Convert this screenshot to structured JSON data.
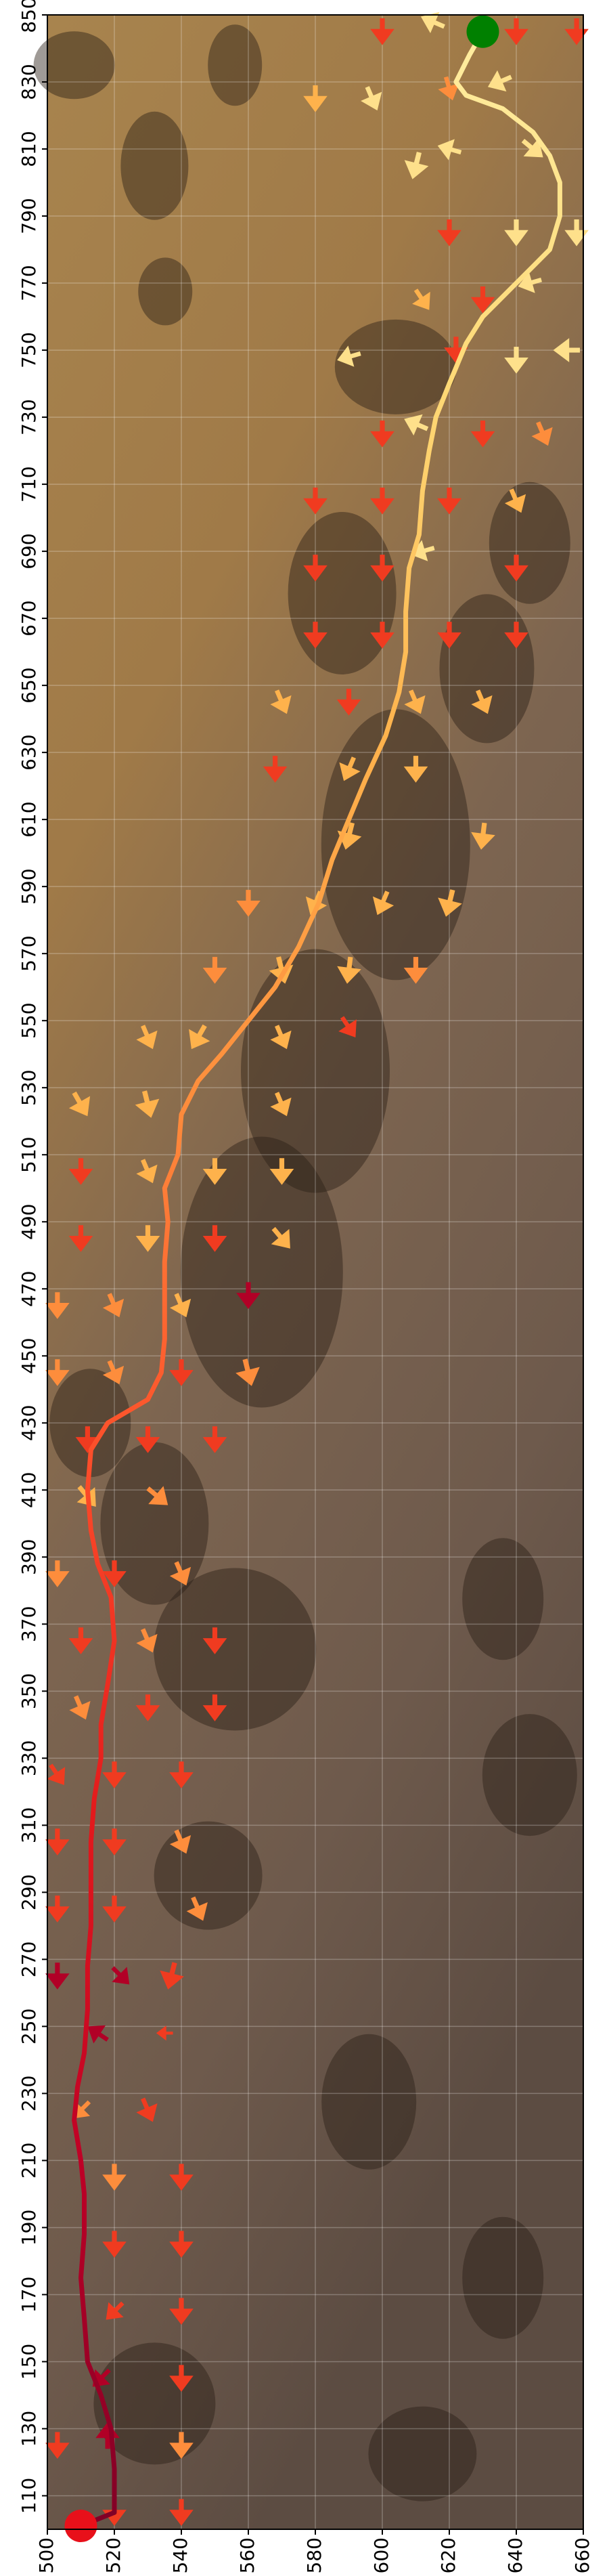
{
  "chart_data": {
    "type": "quiver",
    "xlim": [
      500,
      660
    ],
    "ylim": [
      100,
      850
    ],
    "xticks": [
      500,
      520,
      540,
      560,
      580,
      600,
      620,
      640,
      660
    ],
    "yticks": [
      110,
      130,
      150,
      170,
      190,
      210,
      230,
      250,
      270,
      290,
      310,
      330,
      350,
      370,
      390,
      410,
      430,
      450,
      470,
      490,
      510,
      530,
      550,
      570,
      590,
      610,
      630,
      650,
      670,
      690,
      710,
      730,
      750,
      770,
      790,
      810,
      830,
      850
    ],
    "grid": true,
    "path": {
      "x": [
        630,
        626,
        622,
        625,
        636,
        645,
        650,
        653,
        653,
        650,
        645,
        638,
        630,
        625,
        620,
        616,
        614,
        612,
        611,
        608,
        607,
        607,
        605,
        601,
        595,
        590,
        585,
        581,
        575,
        568,
        560,
        552,
        545,
        540,
        539,
        535,
        536,
        535,
        535,
        535,
        534,
        530,
        518,
        513,
        512,
        513,
        515,
        519,
        520,
        518,
        516,
        516,
        514,
        513,
        513,
        513,
        512,
        512,
        511,
        509,
        508,
        510,
        511,
        511,
        510,
        511,
        512,
        516,
        519,
        520,
        520,
        510
      ],
      "y": [
        845,
        838,
        830,
        826,
        822,
        815,
        808,
        800,
        790,
        780,
        775,
        768,
        760,
        752,
        740,
        730,
        720,
        708,
        695,
        685,
        672,
        660,
        648,
        635,
        622,
        610,
        598,
        585,
        572,
        560,
        550,
        540,
        532,
        522,
        510,
        500,
        490,
        478,
        465,
        455,
        445,
        437,
        430,
        422,
        410,
        398,
        388,
        378,
        365,
        352,
        340,
        330,
        318,
        305,
        292,
        280,
        268,
        255,
        242,
        232,
        222,
        210,
        200,
        188,
        175,
        163,
        150,
        140,
        130,
        118,
        105,
        101
      ],
      "colors": [
        "#ffeda0",
        "#fed976",
        "#feb24c",
        "#fd8d3c",
        "#fc4e2a",
        "#e31a1c",
        "#bd0026",
        "#800026"
      ]
    },
    "start": {
      "x": 630,
      "y": 845,
      "color": "#008000"
    },
    "end": {
      "x": 510,
      "y": 101,
      "color": "#e8101a"
    },
    "quiver": {
      "x": [
        600,
        615,
        640,
        658,
        580,
        597,
        620,
        635,
        610,
        620,
        645,
        620,
        640,
        658,
        612,
        630,
        644,
        590,
        622,
        640,
        655,
        600,
        610,
        630,
        648,
        580,
        600,
        620,
        640,
        580,
        600,
        612,
        640,
        580,
        600,
        620,
        640,
        570,
        590,
        610,
        630,
        568,
        590,
        610,
        590,
        630,
        560,
        580,
        600,
        620,
        550,
        570,
        590,
        610,
        530,
        545,
        570,
        590,
        510,
        530,
        570,
        510,
        530,
        550,
        570,
        510,
        530,
        550,
        570,
        503,
        520,
        540,
        560,
        503,
        520,
        540,
        560,
        512,
        530,
        550,
        512,
        533,
        503,
        520,
        540,
        510,
        530,
        550,
        510,
        530,
        550,
        503,
        520,
        540,
        503,
        520,
        540,
        503,
        520,
        545,
        503,
        522,
        537,
        515,
        535,
        510,
        530,
        520,
        540,
        520,
        540,
        520,
        540,
        516,
        540,
        503,
        518,
        540,
        520,
        540
      ],
      "y": [
        845,
        848,
        845,
        845,
        825,
        825,
        828,
        830,
        805,
        810,
        810,
        785,
        785,
        785,
        765,
        765,
        770,
        748,
        750,
        747,
        750,
        725,
        728,
        725,
        725,
        705,
        705,
        705,
        705,
        685,
        685,
        690,
        685,
        665,
        665,
        665,
        665,
        645,
        645,
        645,
        645,
        625,
        625,
        625,
        605,
        605,
        585,
        585,
        585,
        585,
        565,
        565,
        565,
        565,
        545,
        545,
        545,
        548,
        525,
        525,
        525,
        505,
        505,
        505,
        505,
        485,
        485,
        485,
        485,
        465,
        465,
        465,
        468,
        445,
        445,
        445,
        445,
        425,
        425,
        425,
        408,
        408,
        385,
        385,
        385,
        365,
        365,
        365,
        345,
        345,
        345,
        325,
        325,
        325,
        305,
        305,
        305,
        285,
        285,
        285,
        265,
        265,
        265,
        248,
        248,
        225,
        225,
        205,
        205,
        185,
        185,
        165,
        165,
        145,
        145,
        125,
        128,
        125,
        105,
        105
      ],
      "u": [
        0,
        -7,
        0,
        0,
        0,
        3,
        2,
        -7,
        -2,
        -7,
        6,
        0,
        0,
        0,
        4,
        0,
        -7,
        -7,
        0,
        0,
        -8,
        0,
        -7,
        0,
        3,
        0,
        0,
        0,
        3,
        0,
        0,
        -7,
        0,
        0,
        0,
        0,
        0,
        3,
        0,
        3,
        3,
        0,
        -3,
        0,
        -2,
        -1,
        0,
        -3,
        -3,
        -2,
        0,
        2,
        -1,
        0,
        3,
        -4,
        3,
        4,
        4,
        2,
        3,
        0,
        3,
        0,
        0,
        0,
        0,
        0,
        5,
        0,
        3,
        3,
        0,
        0,
        3,
        0,
        2,
        0,
        0,
        0,
        5,
        6,
        0,
        0,
        3,
        0,
        3,
        0,
        3,
        0,
        0,
        4,
        0,
        0,
        0,
        0,
        3,
        0,
        0,
        3,
        0,
        5,
        -2,
        -6,
        -5,
        -5,
        3,
        0,
        0,
        0,
        0,
        -5,
        0,
        -5,
        0,
        0,
        0,
        0,
        0,
        0
      ],
      "v": [
        -8,
        3,
        -8,
        -8,
        -8,
        -7,
        -7,
        -3,
        -8,
        2,
        -5,
        -8,
        -8,
        -8,
        -6,
        -8,
        -2,
        -2,
        -8,
        -8,
        0,
        -8,
        3,
        -8,
        -7,
        -8,
        -8,
        -8,
        -7,
        -8,
        -8,
        -2,
        -8,
        -8,
        -8,
        -8,
        -8,
        -7,
        -8,
        -7,
        -7,
        -8,
        -7,
        -8,
        -8,
        -8,
        -8,
        -7,
        -7,
        -8,
        -8,
        -8,
        -8,
        -8,
        -7,
        -7,
        -7,
        -6,
        -7,
        -8,
        -7,
        -8,
        -7,
        -8,
        -8,
        -8,
        -8,
        -8,
        -6,
        -8,
        -7,
        -7,
        -8,
        -8,
        -7,
        -8,
        -8,
        -8,
        -8,
        -8,
        -6,
        -5,
        -8,
        -8,
        -7,
        -8,
        -7,
        -8,
        -7,
        -8,
        -8,
        -6,
        -8,
        -8,
        -8,
        -8,
        -7,
        -8,
        -8,
        -7,
        -8,
        -5,
        -8,
        4,
        0,
        -5,
        -7,
        -8,
        -8,
        -8,
        -8,
        -5,
        -8,
        -5,
        -8,
        -8,
        8,
        -8,
        -8,
        -8
      ],
      "colors": [
        "#f03b20",
        "#fee08b",
        "#f03b20",
        "#f03b20",
        "#feb24c",
        "#fee08b",
        "#fd8d3c",
        "#fee08b",
        "#fee08b",
        "#fee08b",
        "#fee08b",
        "#f03b20",
        "#fee08b",
        "#fee08b",
        "#feb24c",
        "#f03b20",
        "#fee08b",
        "#fee08b",
        "#f03b20",
        "#fee08b",
        "#fee08b",
        "#f03b20",
        "#fee08b",
        "#f03b20",
        "#fd8d3c",
        "#f03b20",
        "#f03b20",
        "#f03b20",
        "#feb24c",
        "#f03b20",
        "#f03b20",
        "#fee08b",
        "#f03b20",
        "#f03b20",
        "#f03b20",
        "#f03b20",
        "#f03b20",
        "#feb24c",
        "#f03b20",
        "#feb24c",
        "#feb24c",
        "#f03b20",
        "#feb24c",
        "#feb24c",
        "#feb24c",
        "#feb24c",
        "#fd8d3c",
        "#feb24c",
        "#feb24c",
        "#feb24c",
        "#fd8d3c",
        "#feb24c",
        "#feb24c",
        "#fd8d3c",
        "#feb24c",
        "#feb24c",
        "#feb24c",
        "#f03b20",
        "#feb24c",
        "#feb24c",
        "#feb24c",
        "#f03b20",
        "#feb24c",
        "#feb24c",
        "#feb24c",
        "#f03b20",
        "#feb24c",
        "#f03b20",
        "#feb24c",
        "#fd8d3c",
        "#fd8d3c",
        "#feb24c",
        "#b10026",
        "#fd8d3c",
        "#fd8d3c",
        "#f03b20",
        "#fd8d3c",
        "#f03b20",
        "#f03b20",
        "#f03b20",
        "#feb24c",
        "#fd8d3c",
        "#fd8d3c",
        "#f03b20",
        "#fd8d3c",
        "#f03b20",
        "#fd8d3c",
        "#f03b20",
        "#fd8d3c",
        "#f03b20",
        "#f03b20",
        "#f03b20",
        "#f03b20",
        "#f03b20",
        "#f03b20",
        "#f03b20",
        "#fd8d3c",
        "#f03b20",
        "#f03b20",
        "#fd8d3c",
        "#b10026",
        "#b10026",
        "#f03b20",
        "#b10026",
        "#f03b20",
        "#fd8d3c",
        "#f03b20",
        "#fd8d3c",
        "#f03b20",
        "#f03b20",
        "#f03b20",
        "#f03b20",
        "#f03b20",
        "#b10026",
        "#f03b20",
        "#f03b20",
        "#b10026",
        "#fd8d3c",
        "#f03b20",
        "#f03b20"
      ]
    }
  }
}
